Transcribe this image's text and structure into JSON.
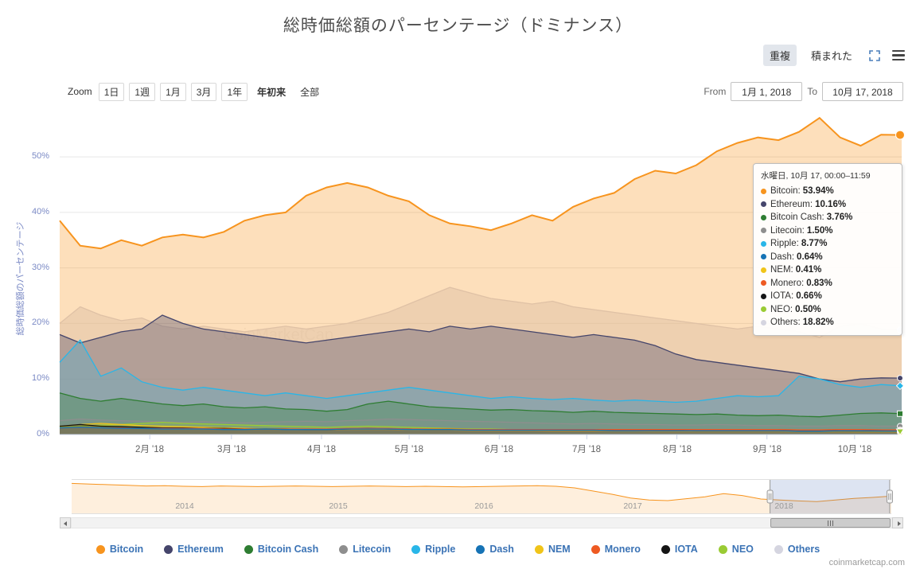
{
  "title": "総時価総額のパーセンテージ（ドミナンス）",
  "mode_toggle": {
    "overlap_label": "重複",
    "stacked_label": "積まれた",
    "selected": "重複"
  },
  "zoom": {
    "label": "Zoom",
    "options": [
      {
        "id": "1d",
        "text": "1日",
        "style": "boxed"
      },
      {
        "id": "1w",
        "text": "1週",
        "style": "boxed"
      },
      {
        "id": "1m",
        "text": "1月",
        "style": "boxed"
      },
      {
        "id": "3m",
        "text": "3月",
        "style": "boxed"
      },
      {
        "id": "1y",
        "text": "1年",
        "style": "boxed"
      },
      {
        "id": "ytd",
        "text": "年初来",
        "style": "selected"
      },
      {
        "id": "all",
        "text": "全部",
        "style": "plain"
      }
    ],
    "selected": "年初来"
  },
  "range_inputs": {
    "from_label": "From",
    "from_value": "1月 1, 2018",
    "to_label": "To",
    "to_value": "10月 17, 2018"
  },
  "tooltip": {
    "header": "水曜日, 10月 17, 00:00–11:59",
    "rows": [
      {
        "name": "Bitcoin",
        "value": "53.94%"
      },
      {
        "name": "Ethereum",
        "value": "10.16%"
      },
      {
        "name": "Bitcoin Cash",
        "value": "3.76%"
      },
      {
        "name": "Litecoin",
        "value": "1.50%"
      },
      {
        "name": "Ripple",
        "value": "8.77%"
      },
      {
        "name": "Dash",
        "value": "0.64%"
      },
      {
        "name": "NEM",
        "value": "0.41%"
      },
      {
        "name": "Monero",
        "value": "0.83%"
      },
      {
        "name": "IOTA",
        "value": "0.66%"
      },
      {
        "name": "NEO",
        "value": "0.50%"
      },
      {
        "name": "Others",
        "value": "18.82%"
      }
    ]
  },
  "watermark": "CoinMarketCap",
  "credit": "coinmarketcap.com",
  "colors": {
    "axis_label": "#7b8ac5",
    "x_label": "#606060",
    "grid": "#e6e6e6",
    "axis_line": "#ccd6eb",
    "legend_text": "#3b73b5",
    "accent_blue": "#4a7ebb",
    "nav_mask": "rgba(102,133,194,0.22)"
  },
  "chart_data": {
    "type": "area",
    "mode": "overlap",
    "title": "総時価総額のパーセンテージ（ドミナンス）",
    "ylabel": "総時価総額のパーセンテージ",
    "ylim": [
      0,
      57.75
    ],
    "grid": true,
    "y_tick_labels": [
      "0%",
      "10%",
      "20%",
      "30%",
      "40%",
      "50%"
    ],
    "y_tick_values": [
      0,
      10,
      20,
      30,
      40,
      50
    ],
    "x_range": [
      "2018-01-01",
      "2018-10-17"
    ],
    "x_tick_labels": [
      "2月 '18",
      "3月 '18",
      "4月 '18",
      "5月 '18",
      "6月 '18",
      "7月 '18",
      "8月 '18",
      "9月 '18",
      "10月 '18"
    ],
    "x_tick_pos": [
      0.107,
      0.204,
      0.311,
      0.415,
      0.522,
      0.626,
      0.733,
      0.84,
      0.944
    ],
    "series": [
      {
        "name": "Bitcoin",
        "color": "#f7941e",
        "marker": "circle-lg",
        "final": 53.94,
        "values": [
          38.5,
          34.0,
          33.5,
          35.0,
          34.0,
          35.5,
          36.0,
          35.5,
          36.5,
          38.5,
          39.5,
          40.0,
          43.0,
          44.5,
          45.3,
          44.5,
          43.0,
          42.0,
          39.5,
          38.0,
          37.5,
          36.8,
          38.0,
          39.5,
          38.5,
          41.0,
          42.5,
          43.5,
          46.0,
          47.5,
          47.0,
          48.5,
          51.0,
          52.5,
          53.5,
          53.0,
          54.5,
          57.0,
          53.5,
          52.0,
          54.0,
          53.94
        ]
      },
      {
        "name": "Ethereum",
        "color": "#45456b",
        "marker": "circle",
        "final": 10.16,
        "values": [
          18.0,
          16.5,
          17.5,
          18.5,
          19.0,
          21.5,
          20.0,
          19.0,
          18.5,
          18.0,
          17.5,
          17.0,
          16.5,
          17.0,
          17.5,
          18.0,
          18.5,
          19.0,
          18.5,
          19.5,
          19.0,
          19.5,
          19.0,
          18.5,
          18.0,
          17.5,
          18.0,
          17.5,
          17.0,
          16.0,
          14.5,
          13.5,
          13.0,
          12.5,
          12.0,
          11.5,
          11.0,
          10.0,
          9.5,
          10.0,
          10.2,
          10.16
        ]
      },
      {
        "name": "Bitcoin Cash",
        "color": "#2e7d32",
        "marker": "square",
        "final": 3.76,
        "values": [
          7.5,
          6.5,
          6.0,
          6.5,
          6.0,
          5.5,
          5.2,
          5.5,
          5.0,
          4.8,
          5.0,
          4.6,
          4.5,
          4.2,
          4.5,
          5.5,
          6.0,
          5.5,
          5.0,
          4.8,
          4.6,
          4.4,
          4.5,
          4.3,
          4.2,
          4.0,
          4.2,
          4.0,
          3.9,
          3.8,
          3.7,
          3.6,
          3.7,
          3.5,
          3.4,
          3.5,
          3.3,
          3.2,
          3.5,
          3.8,
          3.9,
          3.76
        ]
      },
      {
        "name": "Litecoin",
        "color": "#8e8e8e",
        "marker": "circle",
        "final": 1.5,
        "values": [
          2.5,
          2.8,
          2.6,
          2.5,
          2.4,
          2.3,
          2.2,
          2.3,
          2.2,
          2.1,
          2.2,
          2.3,
          2.4,
          2.3,
          2.5,
          2.6,
          2.8,
          2.7,
          2.6,
          2.5,
          2.4,
          2.3,
          2.2,
          2.1,
          2.0,
          1.9,
          2.0,
          1.9,
          1.8,
          1.8,
          1.7,
          1.7,
          1.8,
          1.7,
          1.6,
          1.6,
          1.5,
          1.5,
          1.6,
          1.6,
          1.5,
          1.5
        ]
      },
      {
        "name": "Ripple",
        "color": "#29b6e8",
        "marker": "diamond",
        "final": 8.77,
        "values": [
          13.0,
          17.0,
          10.5,
          12.0,
          9.5,
          8.5,
          8.0,
          8.5,
          8.0,
          7.5,
          7.0,
          7.5,
          7.0,
          6.5,
          7.0,
          7.5,
          8.0,
          8.5,
          8.0,
          7.5,
          7.0,
          6.5,
          6.8,
          6.5,
          6.3,
          6.5,
          6.2,
          6.0,
          6.2,
          6.0,
          5.8,
          6.0,
          6.5,
          7.0,
          6.8,
          7.0,
          10.5,
          10.0,
          9.0,
          8.5,
          9.0,
          8.77
        ]
      },
      {
        "name": "Dash",
        "color": "#1673b5",
        "marker": "circle",
        "final": 0.64,
        "values": [
          1.2,
          1.3,
          1.2,
          1.1,
          1.1,
          1.0,
          1.0,
          1.0,
          0.9,
          0.9,
          1.0,
          0.9,
          0.9,
          0.9,
          1.0,
          1.0,
          1.0,
          0.9,
          0.9,
          0.9,
          0.8,
          0.8,
          0.8,
          0.8,
          0.8,
          0.8,
          0.8,
          0.7,
          0.7,
          0.7,
          0.7,
          0.7,
          0.7,
          0.7,
          0.7,
          0.7,
          0.6,
          0.6,
          0.7,
          0.7,
          0.65,
          0.64
        ]
      },
      {
        "name": "NEM",
        "color": "#f0c419",
        "marker": "circle",
        "final": 0.41,
        "values": [
          1.5,
          1.8,
          2.0,
          1.8,
          1.6,
          1.5,
          1.4,
          1.3,
          1.2,
          1.1,
          1.0,
          1.0,
          0.9,
          0.9,
          0.9,
          0.9,
          0.9,
          0.8,
          0.8,
          0.8,
          0.7,
          0.7,
          0.7,
          0.7,
          0.6,
          0.6,
          0.6,
          0.6,
          0.6,
          0.5,
          0.5,
          0.5,
          0.5,
          0.5,
          0.5,
          0.5,
          0.45,
          0.45,
          0.45,
          0.42,
          0.41,
          0.41
        ]
      },
      {
        "name": "Monero",
        "color": "#ee5a22",
        "marker": "circle",
        "final": 0.83,
        "values": [
          1.2,
          1.3,
          1.2,
          1.2,
          1.1,
          1.1,
          1.1,
          1.1,
          1.0,
          1.0,
          1.0,
          1.0,
          1.0,
          1.0,
          1.1,
          1.1,
          1.1,
          1.0,
          1.0,
          1.0,
          0.9,
          0.9,
          0.9,
          0.9,
          0.9,
          0.9,
          0.9,
          0.9,
          0.9,
          0.9,
          0.9,
          0.9,
          0.9,
          0.9,
          0.9,
          0.9,
          0.85,
          0.85,
          0.9,
          0.9,
          0.85,
          0.83
        ]
      },
      {
        "name": "IOTA",
        "color": "#151515",
        "marker": "circle",
        "final": 0.66,
        "values": [
          1.5,
          1.8,
          1.5,
          1.4,
          1.3,
          1.2,
          1.2,
          1.1,
          1.1,
          1.0,
          1.0,
          1.0,
          0.9,
          0.9,
          1.0,
          1.1,
          1.0,
          1.0,
          0.9,
          0.9,
          0.9,
          0.9,
          0.9,
          0.9,
          0.9,
          0.8,
          0.8,
          0.8,
          0.8,
          0.8,
          0.8,
          0.7,
          0.7,
          0.7,
          0.7,
          0.7,
          0.65,
          0.65,
          0.7,
          0.7,
          0.68,
          0.66
        ]
      },
      {
        "name": "NEO",
        "color": "#9acb34",
        "marker": "triangle-down",
        "final": 0.5,
        "values": [
          1.3,
          1.5,
          1.7,
          1.8,
          2.0,
          2.2,
          2.0,
          1.9,
          1.8,
          1.7,
          1.6,
          1.5,
          1.4,
          1.3,
          1.4,
          1.5,
          1.4,
          1.3,
          1.2,
          1.1,
          1.0,
          1.0,
          0.9,
          0.9,
          0.9,
          0.8,
          0.8,
          0.8,
          0.7,
          0.7,
          0.7,
          0.6,
          0.6,
          0.6,
          0.6,
          0.55,
          0.5,
          0.5,
          0.55,
          0.52,
          0.5,
          0.5
        ]
      },
      {
        "name": "Others",
        "color": "#d5d5e0",
        "marker": "circle",
        "final": 18.82,
        "values": [
          20.0,
          23.0,
          21.5,
          20.5,
          21.0,
          19.5,
          19.0,
          19.5,
          19.0,
          18.5,
          19.0,
          19.5,
          19.0,
          19.5,
          20.0,
          21.0,
          22.0,
          23.5,
          25.0,
          26.5,
          25.5,
          24.5,
          24.0,
          23.5,
          24.0,
          23.0,
          22.5,
          22.0,
          21.5,
          21.0,
          20.5,
          20.0,
          19.5,
          19.0,
          19.5,
          19.0,
          18.5,
          17.5,
          19.5,
          20.0,
          19.0,
          18.82
        ]
      }
    ],
    "navigator": {
      "series_name": "Bitcoin",
      "color": "#f7941e",
      "values": [
        94,
        92,
        90,
        88,
        86,
        87,
        85,
        84,
        86,
        85,
        84,
        85,
        86,
        85,
        84,
        85,
        86,
        85,
        84,
        85,
        84,
        83,
        84,
        85,
        86,
        87,
        85,
        80,
        70,
        60,
        48,
        42,
        40,
        46,
        52,
        62,
        56,
        45,
        42,
        39,
        37,
        42,
        47,
        50,
        54
      ],
      "year_labels": [
        "2014",
        "2015",
        "2016",
        "2017",
        "2018"
      ],
      "year_pos": [
        0.138,
        0.325,
        0.503,
        0.684,
        0.869
      ],
      "selected_range": [
        0.852,
        0.998
      ]
    }
  }
}
